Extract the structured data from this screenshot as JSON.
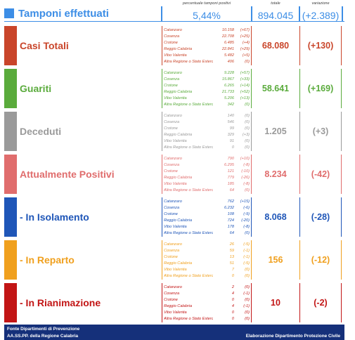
{
  "header": {
    "title": "Tamponi effettuati",
    "pct_caption": "percentuale tamponi positivi",
    "pct_value": "5,44%",
    "total_caption": "totale",
    "total_value": "894.045",
    "var_caption": "variazione",
    "var_value": "(+2.389)",
    "color": "#3d8ee6"
  },
  "rows": [
    {
      "label": "Casi Totali",
      "color": "#c9452a",
      "total": "68.080",
      "var": "(+130)",
      "provinces": [
        {
          "name": "Catanzaro",
          "value": "10.158",
          "delta": "(+67)"
        },
        {
          "name": "Cosenza",
          "value": "22.708",
          "delta": "(+25)"
        },
        {
          "name": "Crotone",
          "value": "6.485",
          "delta": "(+4)"
        },
        {
          "name": "Reggio Calabria",
          "value": "22.841",
          "delta": "(+29)"
        },
        {
          "name": "Vibo Valentia",
          "value": "5.482",
          "delta": "(+5)"
        },
        {
          "name": "Altra Regione o Stato Estero",
          "value": "406",
          "delta": "(0)"
        }
      ]
    },
    {
      "label": "Guariti",
      "color": "#5aab3c",
      "total": "58.641",
      "var": "(+169)",
      "provinces": [
        {
          "name": "Catanzaro",
          "value": "9.228",
          "delta": "(+57)"
        },
        {
          "name": "Cosenza",
          "value": "15.867",
          "delta": "(+33)"
        },
        {
          "name": "Crotone",
          "value": "6.265",
          "delta": "(+14)"
        },
        {
          "name": "Reggio Calabria",
          "value": "21.733",
          "delta": "(+52)"
        },
        {
          "name": "Vibo Valentia",
          "value": "5.206",
          "delta": "(+13)"
        },
        {
          "name": "Altra Regione o Stato Estero",
          "value": "342",
          "delta": "(0)"
        }
      ]
    },
    {
      "label": "Deceduti",
      "color": "#9a9a9a",
      "total": "1.205",
      "var": "(+3)",
      "provinces": [
        {
          "name": "Catanzaro",
          "value": "140",
          "delta": "(0)"
        },
        {
          "name": "Cosenza",
          "value": "546",
          "delta": "(0)"
        },
        {
          "name": "Crotone",
          "value": "99",
          "delta": "(0)"
        },
        {
          "name": "Reggio Calabria",
          "value": "329",
          "delta": "(+3)"
        },
        {
          "name": "Vibo Valentia",
          "value": "91",
          "delta": "(0)"
        },
        {
          "name": "Altra Regione o Stato Estero",
          "value": "0",
          "delta": "(0)"
        }
      ]
    },
    {
      "label": "Attualmente Positivi",
      "color": "#e06d6d",
      "total": "8.234",
      "var": "(-42)",
      "provinces": [
        {
          "name": "Catanzaro",
          "value": "790",
          "delta": "(+10)"
        },
        {
          "name": "Cosenza",
          "value": "6.295",
          "delta": "(-8)"
        },
        {
          "name": "Crotone",
          "value": "121",
          "delta": "(-10)"
        },
        {
          "name": "Reggio Calabria",
          "value": "779",
          "delta": "(-26)"
        },
        {
          "name": "Vibo Valentia",
          "value": "185",
          "delta": "(-8)"
        },
        {
          "name": "Altra Regione o Stato Estero",
          "value": "64",
          "delta": "(0)"
        }
      ]
    },
    {
      "label": "- In Isolamento",
      "color": "#1f56b8",
      "total": "8.068",
      "var": "(-28)",
      "provinces": [
        {
          "name": "Catanzaro",
          "value": "762",
          "delta": "(+15)"
        },
        {
          "name": "Cosenza",
          "value": "6.232",
          "delta": "(-6)"
        },
        {
          "name": "Crotone",
          "value": "108",
          "delta": "(-9)"
        },
        {
          "name": "Reggio Calabria",
          "value": "724",
          "delta": "(-20)"
        },
        {
          "name": "Vibo Valentia",
          "value": "178",
          "delta": "(-8)"
        },
        {
          "name": "Altra Regione o Stato Estero",
          "value": "64",
          "delta": "(0)"
        }
      ]
    },
    {
      "label": "- In Reparto",
      "color": "#f0a01e",
      "total": "156",
      "var": "(-12)",
      "provinces": [
        {
          "name": "Catanzaro",
          "value": "26",
          "delta": "(-5)"
        },
        {
          "name": "Cosenza",
          "value": "59",
          "delta": "(-1)"
        },
        {
          "name": "Crotone",
          "value": "13",
          "delta": "(-1)"
        },
        {
          "name": "Reggio Calabria",
          "value": "51",
          "delta": "(-5)"
        },
        {
          "name": "Vibo Valentia",
          "value": "7",
          "delta": "(0)"
        },
        {
          "name": "Altra Regione o Stato Estero",
          "value": "0",
          "delta": "(0)"
        }
      ]
    },
    {
      "label": "- In Rianimazione",
      "color": "#c21515",
      "total": "10",
      "var": "(-2)",
      "provinces": [
        {
          "name": "Catanzaro",
          "value": "2",
          "delta": "(0)"
        },
        {
          "name": "Cosenza",
          "value": "4",
          "delta": "(-1)"
        },
        {
          "name": "Crotone",
          "value": "0",
          "delta": "(0)"
        },
        {
          "name": "Reggio Calabria",
          "value": "4",
          "delta": "(-1)"
        },
        {
          "name": "Vibo Valentia",
          "value": "0",
          "delta": "(0)"
        },
        {
          "name": "Altra Regione o Stato Estero",
          "value": "0",
          "delta": "(0)"
        }
      ]
    }
  ],
  "footer": {
    "line1": "Fonte Dipartimenti di Prevenzione",
    "line2": "AA.SS.PP.  della Regione Calabria",
    "right": "Elaborazione Dipartimento Protezione Civile"
  }
}
